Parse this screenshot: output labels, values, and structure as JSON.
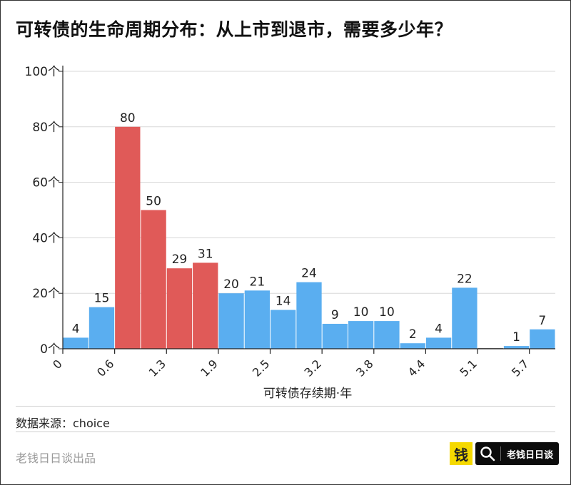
{
  "title": "可转债的生命周期分布：从上市到退市，需要多少年？",
  "source": "数据来源：choice",
  "brand": "老钱日日谈出品",
  "logo": {
    "mark": "钱",
    "text": "老钱日日谈",
    "icon": "search-icon"
  },
  "colors": {
    "highlight": "#e05a58",
    "normal": "#5aaef0",
    "grid": "#d8d8d8",
    "axis": "#222222"
  },
  "chart_data": {
    "type": "bar",
    "xlabel": "可转债存续期·年",
    "ylabel": "",
    "ylim": [
      0,
      100
    ],
    "yticks": [
      "0个",
      "20个",
      "40个",
      "60个",
      "80个",
      "100个"
    ],
    "xtick_labels": [
      "0",
      "0.6",
      "1.3",
      "1.9",
      "2.5",
      "3.2",
      "3.8",
      "4.4",
      "5.1",
      "5.7"
    ],
    "values": [
      4,
      15,
      80,
      50,
      29,
      31,
      20,
      21,
      14,
      24,
      9,
      10,
      10,
      2,
      4,
      22,
      0,
      1,
      7
    ],
    "value_labels": [
      "4",
      "15",
      "80",
      "50",
      "29",
      "31",
      "20",
      "21",
      "14",
      "24",
      "9",
      "10",
      "10",
      "2",
      "4",
      "22",
      "",
      "1",
      "7"
    ],
    "highlighted_bins": [
      2,
      3,
      4,
      5
    ],
    "grid": true
  }
}
